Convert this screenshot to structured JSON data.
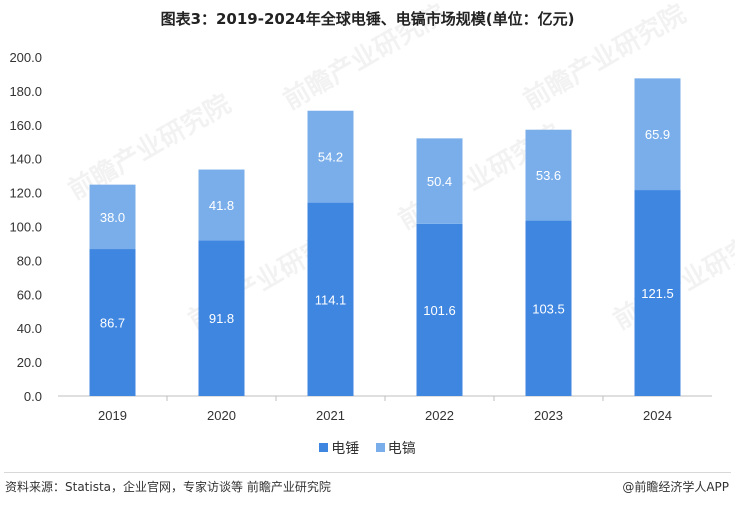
{
  "title": "图表3：2019-2024年全球电锤、电镐市场规模(单位：亿元)",
  "footer": {
    "source": "资料来源：Statista，企业官网，专家访谈等 前瞻产业研究院",
    "brand": "@前瞻经济学人APP"
  },
  "watermark": "前瞻产业研究院",
  "colors": {
    "hammer": "#3f86e0",
    "pick": "#7aaeea",
    "axis": "#bfbfbf",
    "label": "#ffffff"
  },
  "chart_data": {
    "type": "bar",
    "stacked": true,
    "categories": [
      "2019",
      "2020",
      "2021",
      "2022",
      "2023",
      "2024"
    ],
    "series": [
      {
        "name": "电锤",
        "values": [
          86.7,
          91.8,
          114.1,
          101.6,
          103.5,
          121.5
        ]
      },
      {
        "name": "电镐",
        "values": [
          38.0,
          41.8,
          54.2,
          50.4,
          53.6,
          65.9
        ]
      }
    ],
    "ylim": [
      0,
      200
    ],
    "yticks": [
      "0.0",
      "20.0",
      "40.0",
      "60.0",
      "80.0",
      "100.0",
      "120.0",
      "140.0",
      "160.0",
      "180.0",
      "200.0"
    ],
    "grid": false,
    "legend": "bottom-center",
    "title": "图表3：2019-2024年全球电锤、电镐市场规模(单位：亿元)"
  }
}
